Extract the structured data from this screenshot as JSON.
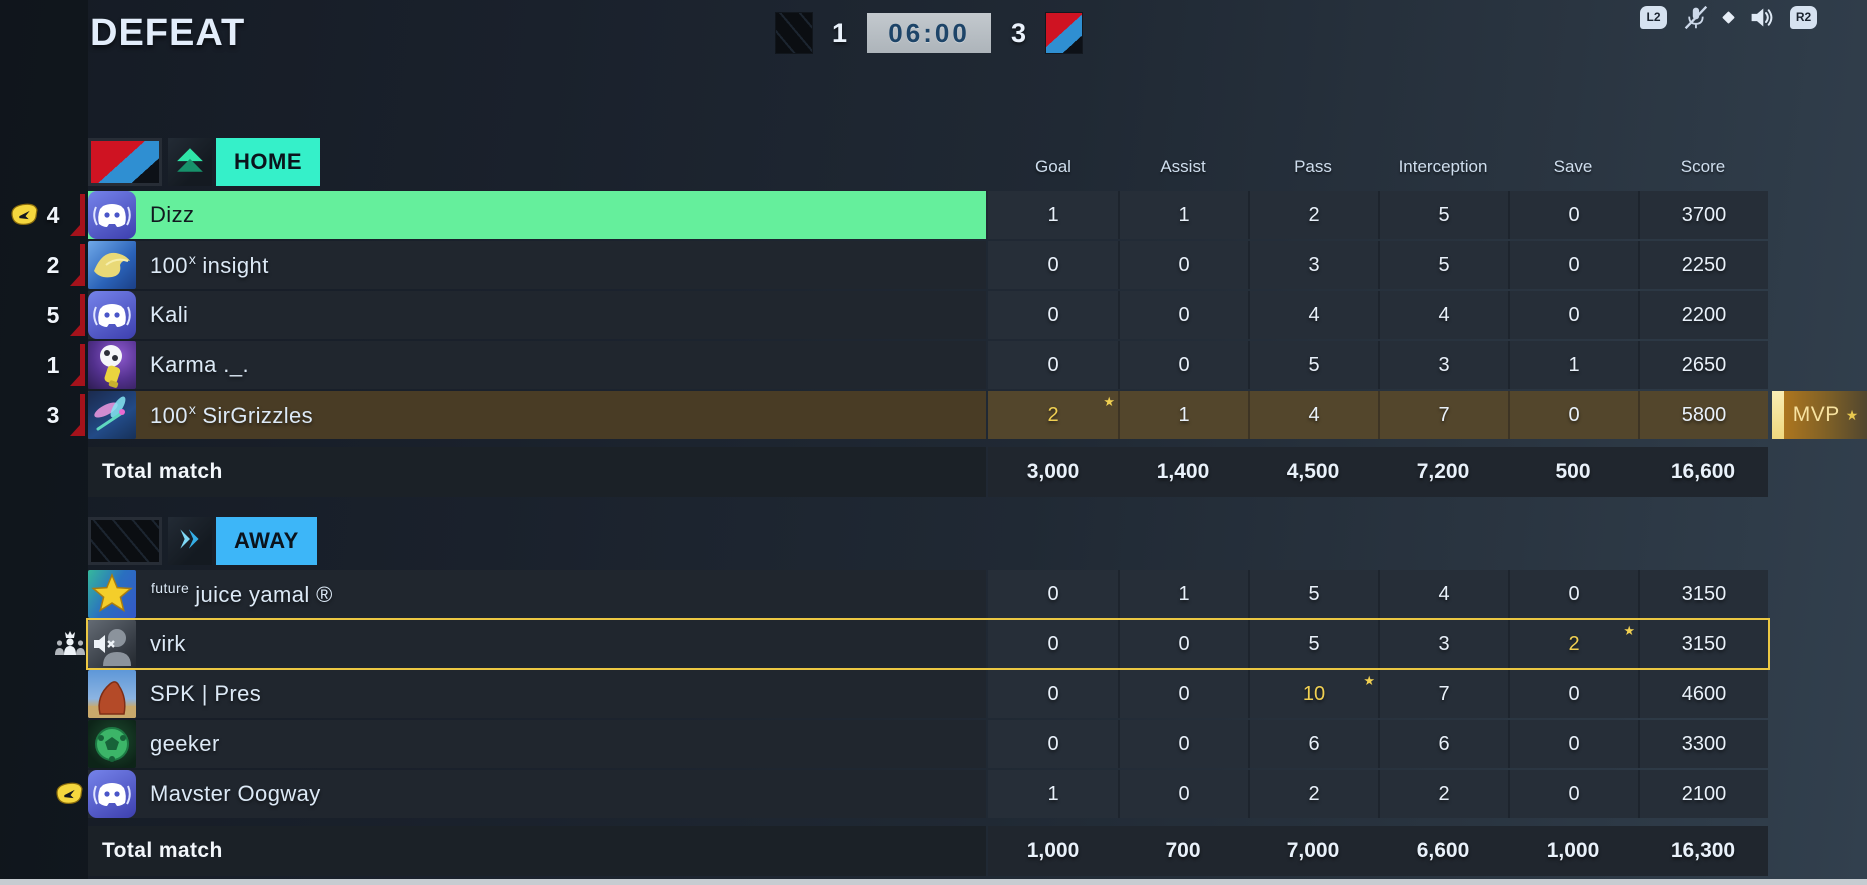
{
  "result_title": "DEFEAT",
  "scoreboard": {
    "left_flag": "dark-team-flag",
    "left_score": "1",
    "time": "06:00",
    "right_score": "3",
    "right_flag": "red-blue-team-flag"
  },
  "hud": {
    "l2": "L2",
    "r2": "R2",
    "icons": [
      "l2-button",
      "mic-muted-icon",
      "diamond-separator-icon",
      "speaker-icon",
      "r2-button"
    ]
  },
  "columns": [
    "Goal",
    "Assist",
    "Pass",
    "Interception",
    "Save",
    "Score"
  ],
  "icons": {
    "star": "★",
    "badge_visor": "team-badge-icon",
    "badge_party": "party-leader-icon",
    "rank_home": "rank-up-chevron-icon",
    "rank_away": "rank-right-chevrons-icon",
    "rank_bracket": "red-rank-bracket-icon"
  },
  "colors": {
    "home_label": "#35f0c9",
    "away_label": "#3db6f8",
    "selected_green": "#65ef9c",
    "mvp_gold_row": "#493c25",
    "best_stat": "#f0d052",
    "row_outline": "#ecc843",
    "timer_bg": "#b9c0c6"
  },
  "mvp_label": "MVP",
  "teams": [
    {
      "id": "home",
      "label": "HOME",
      "players": [
        {
          "rank": "4",
          "badge": "visor",
          "avatar": "discord",
          "name": "Dizz",
          "highlight": "green",
          "stats": [
            {
              "v": "1"
            },
            {
              "v": "1"
            },
            {
              "v": "2"
            },
            {
              "v": "5"
            },
            {
              "v": "0"
            },
            {
              "v": "3700"
            }
          ]
        },
        {
          "rank": "2",
          "avatar": "bird",
          "tag": "100",
          "sup": "x",
          "name": "insight",
          "stats": [
            {
              "v": "0"
            },
            {
              "v": "0"
            },
            {
              "v": "3"
            },
            {
              "v": "5"
            },
            {
              "v": "0"
            },
            {
              "v": "2250"
            }
          ]
        },
        {
          "rank": "5",
          "avatar": "discord",
          "name": "Kali",
          "stats": [
            {
              "v": "0"
            },
            {
              "v": "0"
            },
            {
              "v": "4"
            },
            {
              "v": "4"
            },
            {
              "v": "0"
            },
            {
              "v": "2200"
            }
          ]
        },
        {
          "rank": "1",
          "avatar": "ball-gloves",
          "name": "Karma ._.",
          "stats": [
            {
              "v": "0"
            },
            {
              "v": "0"
            },
            {
              "v": "5"
            },
            {
              "v": "3"
            },
            {
              "v": "1"
            },
            {
              "v": "2650"
            }
          ]
        },
        {
          "rank": "3",
          "avatar": "dragonfly",
          "tag": "100",
          "sup": "x",
          "name": "SirGrizzles",
          "highlight": "gold",
          "mvp": true,
          "stats": [
            {
              "v": "2",
              "star": true,
              "gold": true
            },
            {
              "v": "1"
            },
            {
              "v": "4"
            },
            {
              "v": "7"
            },
            {
              "v": "0"
            },
            {
              "v": "5800"
            }
          ]
        }
      ],
      "total": {
        "label": "Total match",
        "values": [
          "3,000",
          "1,400",
          "4,500",
          "7,200",
          "500",
          "16,600"
        ]
      }
    },
    {
      "id": "away",
      "label": "AWAY",
      "players": [
        {
          "avatar": "star",
          "sup": "future",
          "name": "juice yamal ®",
          "stats": [
            {
              "v": "0"
            },
            {
              "v": "1"
            },
            {
              "v": "5"
            },
            {
              "v": "4"
            },
            {
              "v": "0"
            },
            {
              "v": "3150"
            }
          ]
        },
        {
          "avatar": "muted-head",
          "badge": "party",
          "name": "virk",
          "outline": true,
          "stats": [
            {
              "v": "0"
            },
            {
              "v": "0"
            },
            {
              "v": "5"
            },
            {
              "v": "3"
            },
            {
              "v": "2",
              "star": true,
              "gold": true
            },
            {
              "v": "3150"
            }
          ]
        },
        {
          "avatar": "rock",
          "name": "SPK | Pres",
          "stats": [
            {
              "v": "0"
            },
            {
              "v": "0"
            },
            {
              "v": "10",
              "star": true,
              "gold": true
            },
            {
              "v": "7"
            },
            {
              "v": "0"
            },
            {
              "v": "4600"
            }
          ]
        },
        {
          "avatar": "soccer-green",
          "name": "geeker",
          "stats": [
            {
              "v": "0"
            },
            {
              "v": "0"
            },
            {
              "v": "6"
            },
            {
              "v": "6"
            },
            {
              "v": "0"
            },
            {
              "v": "3300"
            }
          ]
        },
        {
          "avatar": "discord",
          "badge": "visor",
          "name": "Mavster Oogway",
          "stats": [
            {
              "v": "1"
            },
            {
              "v": "0"
            },
            {
              "v": "2"
            },
            {
              "v": "2"
            },
            {
              "v": "0"
            },
            {
              "v": "2100"
            }
          ]
        }
      ],
      "total": {
        "label": "Total match",
        "values": [
          "1,000",
          "700",
          "7,000",
          "6,600",
          "1,000",
          "16,300"
        ]
      }
    }
  ]
}
